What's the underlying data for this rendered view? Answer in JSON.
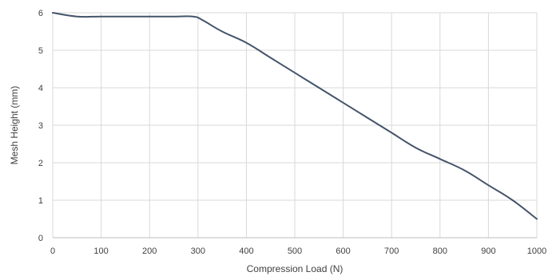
{
  "chart_data": {
    "type": "line",
    "title": "",
    "xlabel": "Compression Load (N)",
    "ylabel": "Mesh Height (mm)",
    "xlim": [
      0,
      1000
    ],
    "ylim": [
      0,
      6
    ],
    "x_ticks": [
      0,
      100,
      200,
      300,
      400,
      500,
      600,
      700,
      800,
      900,
      1000
    ],
    "y_ticks": [
      0,
      1,
      2,
      3,
      4,
      5,
      6
    ],
    "grid": true,
    "legend": "none",
    "colors": {
      "line": "#44546a",
      "grid": "#d9d9d9",
      "axis": "#bfbfbf",
      "text": "#404040"
    },
    "series": [
      {
        "x": [
          0,
          50,
          100,
          150,
          200,
          250,
          290,
          310,
          350,
          400,
          450,
          500,
          550,
          600,
          650,
          700,
          750,
          800,
          850,
          900,
          950,
          1000
        ],
        "values": [
          6.0,
          5.9,
          5.9,
          5.9,
          5.9,
          5.9,
          5.9,
          5.8,
          5.5,
          5.2,
          4.8,
          4.4,
          4.0,
          3.6,
          3.2,
          2.8,
          2.4,
          2.1,
          1.8,
          1.4,
          1.0,
          0.5
        ]
      }
    ]
  }
}
